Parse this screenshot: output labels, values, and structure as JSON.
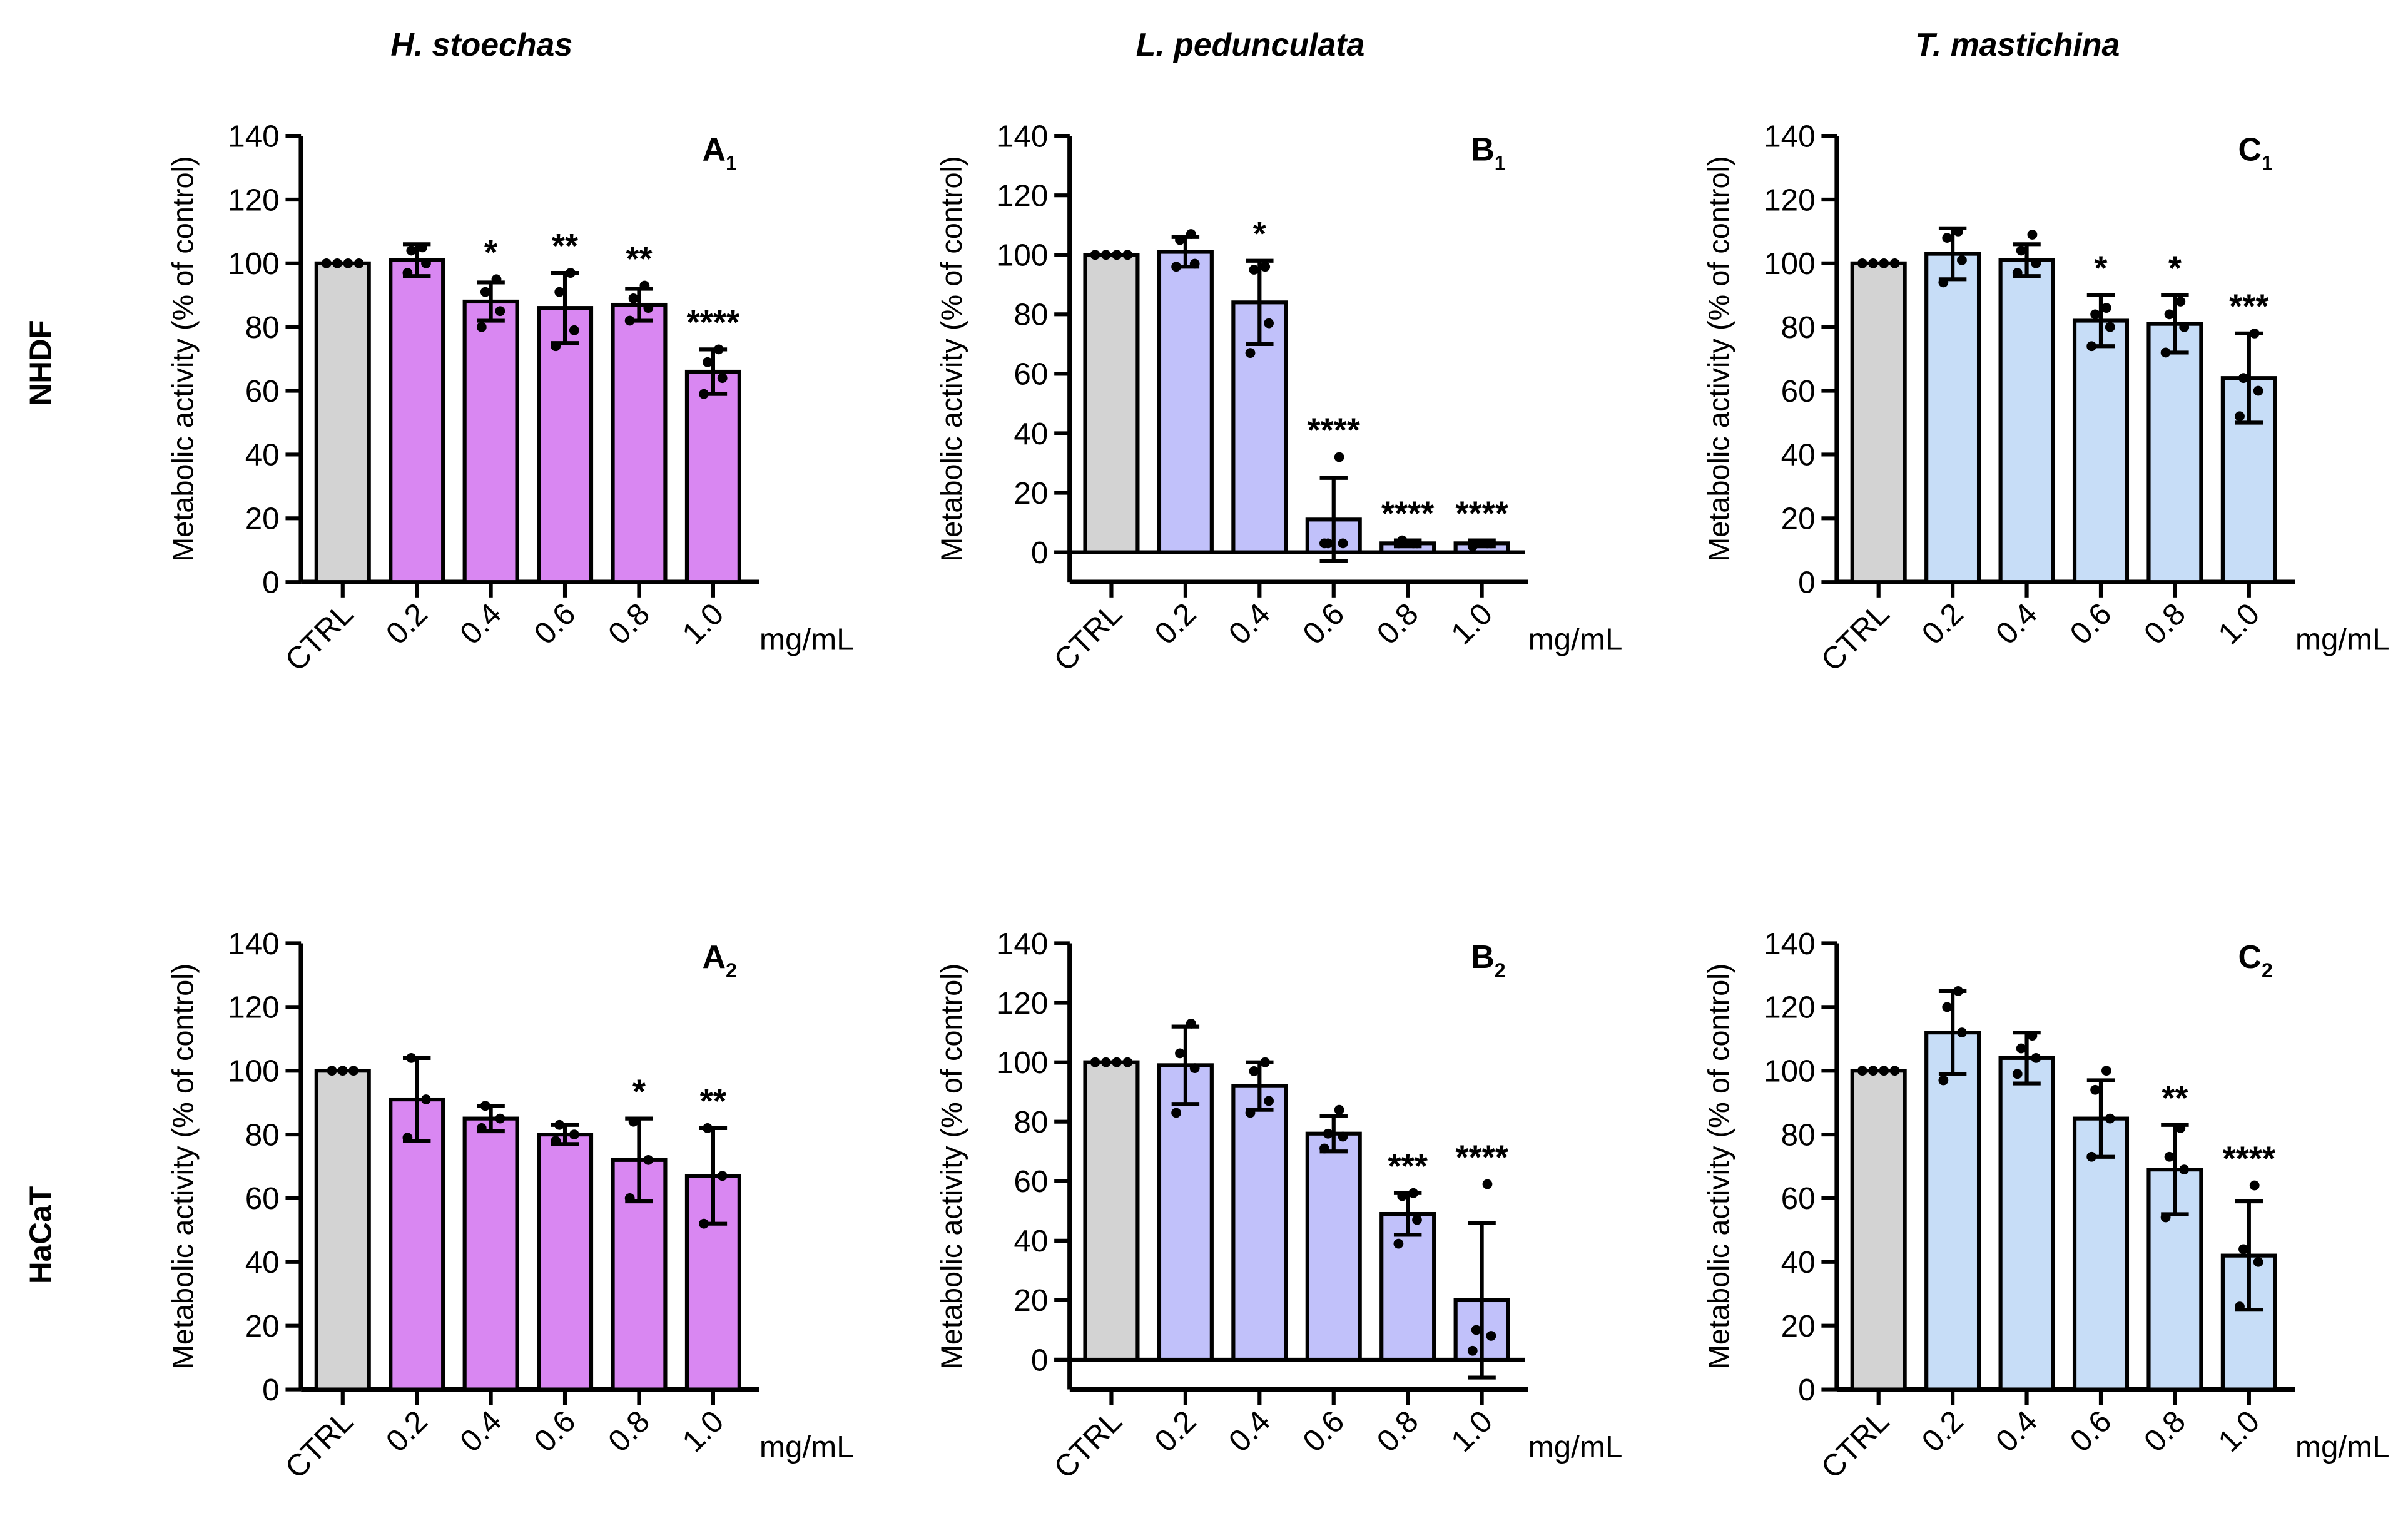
{
  "row_labels": [
    "NHDF",
    "HaCaT"
  ],
  "column_titles": [
    "H. stoechas",
    "L. pedunculata",
    "T. mastichina"
  ],
  "colors": {
    "ctrl": "#d3d3d3",
    "A": "#d987f2",
    "B": "#c1c1fa",
    "C": "#c7ddf7"
  },
  "chart_data": [
    {
      "type": "bar",
      "panel": "A",
      "sub": "1",
      "title": "H. stoechas",
      "row": "NHDF",
      "ylabel": "Metabolic activity (% of control)",
      "xlabel": "mg/mL",
      "ylim": [
        0,
        140
      ],
      "yticks": [
        0,
        20,
        40,
        60,
        80,
        100,
        120,
        140
      ],
      "categories": [
        "CTRL",
        "0.2",
        "0.4",
        "0.6",
        "0.8",
        "1.0"
      ],
      "values": [
        100,
        101,
        88,
        86,
        87,
        66
      ],
      "sd": [
        0,
        5,
        6,
        11,
        5,
        7
      ],
      "points": [
        [
          100,
          100,
          100,
          100
        ],
        [
          97,
          100,
          104,
          105
        ],
        [
          80,
          85,
          91,
          95
        ],
        [
          74,
          79,
          91,
          97
        ],
        [
          82,
          86,
          89,
          93
        ],
        [
          59,
          64,
          69,
          73
        ]
      ],
      "significance": [
        "",
        "",
        "*",
        "**",
        "**",
        "****"
      ]
    },
    {
      "type": "bar",
      "panel": "B",
      "sub": "1",
      "title": "L. pedunculata",
      "row": "NHDF",
      "ylabel": "Metabolic activity (% of control)",
      "xlabel": "mg/mL",
      "ylim": [
        -10,
        140
      ],
      "yticks": [
        0,
        20,
        40,
        60,
        80,
        100,
        120,
        140
      ],
      "categories": [
        "CTRL",
        "0.2",
        "0.4",
        "0.6",
        "0.8",
        "1.0"
      ],
      "values": [
        100,
        101,
        84,
        11,
        3,
        3
      ],
      "sd": [
        0,
        5,
        14,
        14,
        1,
        1
      ],
      "points": [
        [
          100,
          100,
          100,
          100
        ],
        [
          96,
          97,
          105,
          107
        ],
        [
          67,
          77,
          95,
          96
        ],
        [
          3,
          3,
          3,
          32
        ],
        [
          3,
          3,
          4,
          3
        ],
        [
          2,
          3,
          3,
          3
        ]
      ],
      "significance": [
        "",
        "",
        "*",
        "****",
        "****",
        "****"
      ]
    },
    {
      "type": "bar",
      "panel": "C",
      "sub": "1",
      "title": "T. mastichina",
      "row": "NHDF",
      "ylabel": "Metabolic activity (% of control)",
      "xlabel": "mg/mL",
      "ylim": [
        0,
        140
      ],
      "yticks": [
        0,
        20,
        40,
        60,
        80,
        100,
        120,
        140
      ],
      "categories": [
        "CTRL",
        "0.2",
        "0.4",
        "0.6",
        "0.8",
        "1.0"
      ],
      "values": [
        100,
        103,
        101,
        82,
        81,
        64
      ],
      "sd": [
        0,
        8,
        5,
        8,
        9,
        14
      ],
      "points": [
        [
          100,
          100,
          100,
          100
        ],
        [
          94,
          101,
          108,
          110
        ],
        [
          97,
          100,
          104,
          109
        ],
        [
          74,
          80,
          84,
          86
        ],
        [
          72,
          80,
          84,
          88
        ],
        [
          52,
          60,
          64,
          78
        ]
      ],
      "significance": [
        "",
        "",
        "",
        "*",
        "*",
        "***"
      ]
    },
    {
      "type": "bar",
      "panel": "A",
      "sub": "2",
      "title": "",
      "row": "HaCaT",
      "ylabel": "Metabolic activity (% of control)",
      "xlabel": "mg/mL",
      "ylim": [
        0,
        140
      ],
      "yticks": [
        0,
        20,
        40,
        60,
        80,
        100,
        120,
        140
      ],
      "categories": [
        "CTRL",
        "0.2",
        "0.4",
        "0.6",
        "0.8",
        "1.0"
      ],
      "values": [
        100,
        91,
        85,
        80,
        72,
        67
      ],
      "sd": [
        0,
        13,
        4,
        3,
        13,
        15
      ],
      "points": [
        [
          100,
          100,
          100
        ],
        [
          79,
          91,
          104
        ],
        [
          82,
          85,
          89
        ],
        [
          78,
          80,
          83
        ],
        [
          60,
          72,
          84
        ],
        [
          52,
          67,
          82
        ]
      ],
      "significance": [
        "",
        "",
        "",
        "",
        "*",
        "**"
      ]
    },
    {
      "type": "bar",
      "panel": "B",
      "sub": "2",
      "title": "",
      "row": "HaCaT",
      "ylabel": "Metabolic activity (% of control)",
      "xlabel": "mg/mL",
      "ylim": [
        -10,
        140
      ],
      "yticks": [
        0,
        20,
        40,
        60,
        80,
        100,
        120,
        140
      ],
      "categories": [
        "CTRL",
        "0.2",
        "0.4",
        "0.6",
        "0.8",
        "1.0"
      ],
      "values": [
        100,
        99,
        92,
        76,
        49,
        20
      ],
      "sd": [
        0,
        13,
        8,
        6,
        7,
        26
      ],
      "points": [
        [
          100,
          100,
          100,
          100
        ],
        [
          83,
          98,
          103,
          113
        ],
        [
          83,
          87,
          97,
          100
        ],
        [
          71,
          75,
          76,
          84
        ],
        [
          39,
          47,
          55,
          56
        ],
        [
          3,
          8,
          10,
          59
        ]
      ],
      "significance": [
        "",
        "",
        "",
        "",
        "***",
        "****"
      ]
    },
    {
      "type": "bar",
      "panel": "C",
      "sub": "2",
      "title": "",
      "row": "HaCaT",
      "ylabel": "Metabolic activity (% of control)",
      "xlabel": "mg/mL",
      "ylim": [
        0,
        140
      ],
      "yticks": [
        0,
        20,
        40,
        60,
        80,
        100,
        120,
        140
      ],
      "categories": [
        "CTRL",
        "0.2",
        "0.4",
        "0.6",
        "0.8",
        "1.0"
      ],
      "values": [
        100,
        112,
        104,
        85,
        69,
        42
      ],
      "sd": [
        0,
        13,
        8,
        12,
        14,
        17
      ],
      "points": [
        [
          100,
          100,
          100,
          100
        ],
        [
          97,
          112,
          120,
          125
        ],
        [
          99,
          104,
          107,
          111
        ],
        [
          73,
          85,
          94,
          100
        ],
        [
          54,
          69,
          73,
          82
        ],
        [
          26,
          40,
          44,
          64
        ]
      ],
      "significance": [
        "",
        "",
        "",
        "",
        "**",
        "****"
      ]
    }
  ]
}
